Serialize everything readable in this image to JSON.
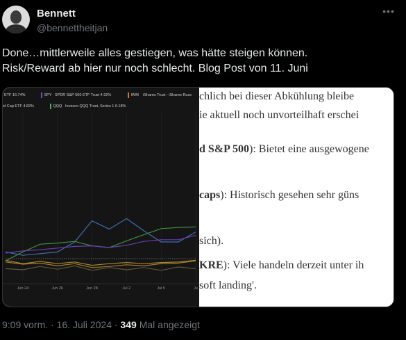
{
  "author": {
    "name": "Bennett",
    "handle": "@bennettheitjan"
  },
  "tweet": {
    "line1": "Done…mittlerweile alles gestiegen, was hätte steigen können.",
    "line2": "Risk/Reward ab hier nur noch schlecht. Blog Post von 11. Juni"
  },
  "meta": {
    "time": "9:09 vorm.",
    "sep1": "·",
    "date": "16. Juli 2024",
    "sep2": "·",
    "views": "349",
    "views_label": "Mal angezeigt"
  },
  "icons": {
    "more": "more-icon"
  },
  "chart_legend": [
    {
      "text": "ETF",
      "value": "16.74%",
      "color": "#4a7fc1"
    },
    {
      "text": "SPY",
      "value": "",
      "color": "#8a3fd0"
    },
    {
      "text": "SPDR S&P 500 ETF Trust",
      "value": "4.92%",
      "color": "#8a3fd0"
    },
    {
      "text": "IWM",
      "value": "",
      "color": "#d9733a"
    },
    {
      "text": "iShares Trust - iShares Russ",
      "value": "",
      "color": "#d9733a"
    },
    {
      "text": "id Cap ETF",
      "value": "4.82%",
      "color": "#c9a227"
    },
    {
      "text": "QQQ",
      "value": "",
      "color": "#4caf50"
    },
    {
      "text": "Invesco QQQ Trust, Series 1",
      "value": "6.18%",
      "color": "#4caf50"
    }
  ],
  "chart_data": {
    "type": "line",
    "x": [
      "",
      "Jun 24",
      "",
      "Jun 26",
      "",
      "Jun 28",
      "",
      "Jul 2",
      "",
      "Jul 5",
      "",
      "Ju"
    ],
    "x_tick_labels": [
      "Jun 24",
      "Jun 26",
      "Jun 28",
      "Jul 2",
      "Jul 5",
      "Ju"
    ],
    "series": [
      {
        "name": "ETF",
        "color": "#3f6fb0",
        "values": [
          1.2,
          0.6,
          0.9,
          1.2,
          3.0,
          6.8,
          5.3,
          7.2,
          5.0,
          3.0,
          3.0,
          4.8
        ]
      },
      {
        "name": "QQQ",
        "color": "#3f8f3f",
        "values": [
          -0.4,
          1.2,
          2.6,
          2.8,
          3.1,
          2.3,
          2.0,
          3.2,
          4.3,
          5.4,
          5.6,
          5.7
        ]
      },
      {
        "name": "SPY",
        "color": "#6a3fb0",
        "values": [
          1.0,
          1.4,
          1.6,
          1.9,
          2.2,
          2.3,
          2.0,
          2.4,
          3.1,
          3.4,
          3.4,
          4.2
        ]
      },
      {
        "name": "IWM",
        "color": "#b5752f",
        "values": [
          -0.6,
          -1.0,
          -0.8,
          -1.3,
          -0.9,
          -1.6,
          -1.4,
          -1.1,
          -1.3,
          -0.9,
          -0.8,
          -0.4
        ]
      },
      {
        "name": "id Cap ETF",
        "color": "#a08a2c",
        "values": [
          -0.3,
          -0.9,
          -0.5,
          -0.9,
          -0.6,
          -1.2,
          -0.9,
          -0.7,
          -0.9,
          -0.7,
          -0.6,
          -0.3
        ]
      },
      {
        "name": "",
        "color": "#5a5a3a",
        "values": [
          -1.8,
          -2.0,
          -1.4,
          -1.9,
          -1.3,
          -2.1,
          -1.6,
          -2.0,
          -1.6,
          -2.1,
          -1.5,
          -1.8
        ]
      }
    ],
    "ylim": [
      -4,
      12
    ],
    "baseline": 0
  },
  "blog_lines": [
    {
      "pre": "chlich bei dieser Abkühlung bleibe",
      "bold": "",
      "post": ""
    },
    {
      "pre": "ie aktuell noch unvorteilhaft erschei",
      "bold": "",
      "post": ""
    },
    {
      "pre": "",
      "bold": "d S&P 500",
      "post": "): Bietet eine ausgewogene"
    },
    {
      "pre": "",
      "bold": "caps",
      "post": "): Historisch gesehen sehr güns"
    },
    {
      "pre": "sich).",
      "bold": "",
      "post": ""
    },
    {
      "pre": "",
      "bold": "KRE",
      "post": "): Viele handeln derzeit unter ih"
    },
    {
      "pre": "soft landing'.",
      "bold": "",
      "post": ""
    }
  ]
}
